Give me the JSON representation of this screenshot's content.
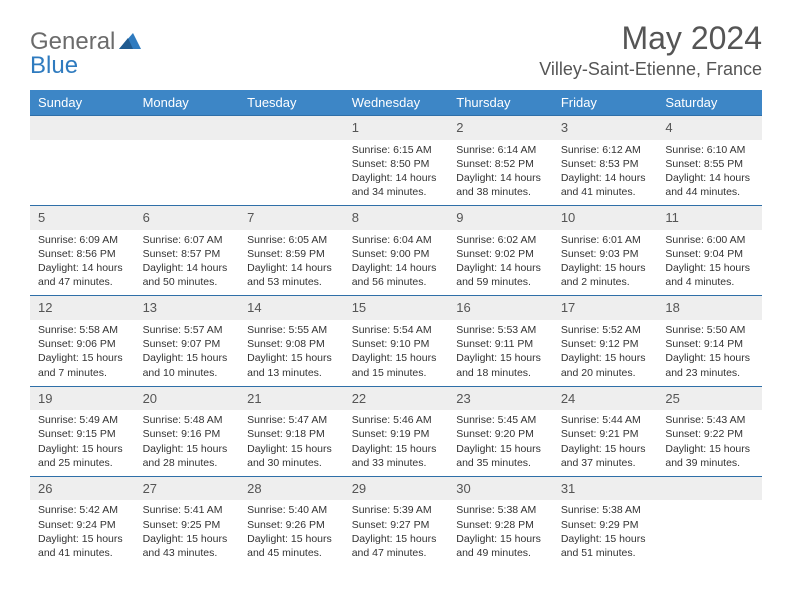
{
  "brand": {
    "part1": "General",
    "part2": "Blue"
  },
  "title": "May 2024",
  "location": "Villey-Saint-Etienne, France",
  "header_bg": "#3d86c6",
  "border_color": "#2f6fa8",
  "daynum_bg": "#eeeeee",
  "weekdays": [
    "Sunday",
    "Monday",
    "Tuesday",
    "Wednesday",
    "Thursday",
    "Friday",
    "Saturday"
  ],
  "weeks": [
    [
      null,
      null,
      null,
      {
        "n": "1",
        "sr": "Sunrise: 6:15 AM",
        "ss": "Sunset: 8:50 PM",
        "d1": "Daylight: 14 hours",
        "d2": "and 34 minutes."
      },
      {
        "n": "2",
        "sr": "Sunrise: 6:14 AM",
        "ss": "Sunset: 8:52 PM",
        "d1": "Daylight: 14 hours",
        "d2": "and 38 minutes."
      },
      {
        "n": "3",
        "sr": "Sunrise: 6:12 AM",
        "ss": "Sunset: 8:53 PM",
        "d1": "Daylight: 14 hours",
        "d2": "and 41 minutes."
      },
      {
        "n": "4",
        "sr": "Sunrise: 6:10 AM",
        "ss": "Sunset: 8:55 PM",
        "d1": "Daylight: 14 hours",
        "d2": "and 44 minutes."
      }
    ],
    [
      {
        "n": "5",
        "sr": "Sunrise: 6:09 AM",
        "ss": "Sunset: 8:56 PM",
        "d1": "Daylight: 14 hours",
        "d2": "and 47 minutes."
      },
      {
        "n": "6",
        "sr": "Sunrise: 6:07 AM",
        "ss": "Sunset: 8:57 PM",
        "d1": "Daylight: 14 hours",
        "d2": "and 50 minutes."
      },
      {
        "n": "7",
        "sr": "Sunrise: 6:05 AM",
        "ss": "Sunset: 8:59 PM",
        "d1": "Daylight: 14 hours",
        "d2": "and 53 minutes."
      },
      {
        "n": "8",
        "sr": "Sunrise: 6:04 AM",
        "ss": "Sunset: 9:00 PM",
        "d1": "Daylight: 14 hours",
        "d2": "and 56 minutes."
      },
      {
        "n": "9",
        "sr": "Sunrise: 6:02 AM",
        "ss": "Sunset: 9:02 PM",
        "d1": "Daylight: 14 hours",
        "d2": "and 59 minutes."
      },
      {
        "n": "10",
        "sr": "Sunrise: 6:01 AM",
        "ss": "Sunset: 9:03 PM",
        "d1": "Daylight: 15 hours",
        "d2": "and 2 minutes."
      },
      {
        "n": "11",
        "sr": "Sunrise: 6:00 AM",
        "ss": "Sunset: 9:04 PM",
        "d1": "Daylight: 15 hours",
        "d2": "and 4 minutes."
      }
    ],
    [
      {
        "n": "12",
        "sr": "Sunrise: 5:58 AM",
        "ss": "Sunset: 9:06 PM",
        "d1": "Daylight: 15 hours",
        "d2": "and 7 minutes."
      },
      {
        "n": "13",
        "sr": "Sunrise: 5:57 AM",
        "ss": "Sunset: 9:07 PM",
        "d1": "Daylight: 15 hours",
        "d2": "and 10 minutes."
      },
      {
        "n": "14",
        "sr": "Sunrise: 5:55 AM",
        "ss": "Sunset: 9:08 PM",
        "d1": "Daylight: 15 hours",
        "d2": "and 13 minutes."
      },
      {
        "n": "15",
        "sr": "Sunrise: 5:54 AM",
        "ss": "Sunset: 9:10 PM",
        "d1": "Daylight: 15 hours",
        "d2": "and 15 minutes."
      },
      {
        "n": "16",
        "sr": "Sunrise: 5:53 AM",
        "ss": "Sunset: 9:11 PM",
        "d1": "Daylight: 15 hours",
        "d2": "and 18 minutes."
      },
      {
        "n": "17",
        "sr": "Sunrise: 5:52 AM",
        "ss": "Sunset: 9:12 PM",
        "d1": "Daylight: 15 hours",
        "d2": "and 20 minutes."
      },
      {
        "n": "18",
        "sr": "Sunrise: 5:50 AM",
        "ss": "Sunset: 9:14 PM",
        "d1": "Daylight: 15 hours",
        "d2": "and 23 minutes."
      }
    ],
    [
      {
        "n": "19",
        "sr": "Sunrise: 5:49 AM",
        "ss": "Sunset: 9:15 PM",
        "d1": "Daylight: 15 hours",
        "d2": "and 25 minutes."
      },
      {
        "n": "20",
        "sr": "Sunrise: 5:48 AM",
        "ss": "Sunset: 9:16 PM",
        "d1": "Daylight: 15 hours",
        "d2": "and 28 minutes."
      },
      {
        "n": "21",
        "sr": "Sunrise: 5:47 AM",
        "ss": "Sunset: 9:18 PM",
        "d1": "Daylight: 15 hours",
        "d2": "and 30 minutes."
      },
      {
        "n": "22",
        "sr": "Sunrise: 5:46 AM",
        "ss": "Sunset: 9:19 PM",
        "d1": "Daylight: 15 hours",
        "d2": "and 33 minutes."
      },
      {
        "n": "23",
        "sr": "Sunrise: 5:45 AM",
        "ss": "Sunset: 9:20 PM",
        "d1": "Daylight: 15 hours",
        "d2": "and 35 minutes."
      },
      {
        "n": "24",
        "sr": "Sunrise: 5:44 AM",
        "ss": "Sunset: 9:21 PM",
        "d1": "Daylight: 15 hours",
        "d2": "and 37 minutes."
      },
      {
        "n": "25",
        "sr": "Sunrise: 5:43 AM",
        "ss": "Sunset: 9:22 PM",
        "d1": "Daylight: 15 hours",
        "d2": "and 39 minutes."
      }
    ],
    [
      {
        "n": "26",
        "sr": "Sunrise: 5:42 AM",
        "ss": "Sunset: 9:24 PM",
        "d1": "Daylight: 15 hours",
        "d2": "and 41 minutes."
      },
      {
        "n": "27",
        "sr": "Sunrise: 5:41 AM",
        "ss": "Sunset: 9:25 PM",
        "d1": "Daylight: 15 hours",
        "d2": "and 43 minutes."
      },
      {
        "n": "28",
        "sr": "Sunrise: 5:40 AM",
        "ss": "Sunset: 9:26 PM",
        "d1": "Daylight: 15 hours",
        "d2": "and 45 minutes."
      },
      {
        "n": "29",
        "sr": "Sunrise: 5:39 AM",
        "ss": "Sunset: 9:27 PM",
        "d1": "Daylight: 15 hours",
        "d2": "and 47 minutes."
      },
      {
        "n": "30",
        "sr": "Sunrise: 5:38 AM",
        "ss": "Sunset: 9:28 PM",
        "d1": "Daylight: 15 hours",
        "d2": "and 49 minutes."
      },
      {
        "n": "31",
        "sr": "Sunrise: 5:38 AM",
        "ss": "Sunset: 9:29 PM",
        "d1": "Daylight: 15 hours",
        "d2": "and 51 minutes."
      },
      null
    ]
  ]
}
